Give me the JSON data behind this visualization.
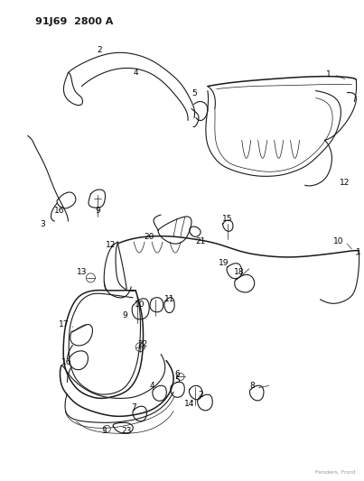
{
  "title": "91J69 2800 A",
  "bg_color": "#ffffff",
  "line_color": "#1a1a1a",
  "label_color": "#000000",
  "title_fontsize": 8.5,
  "label_fontsize": 6.5,
  "fig_width": 4.03,
  "fig_height": 5.33,
  "dpi": 100
}
